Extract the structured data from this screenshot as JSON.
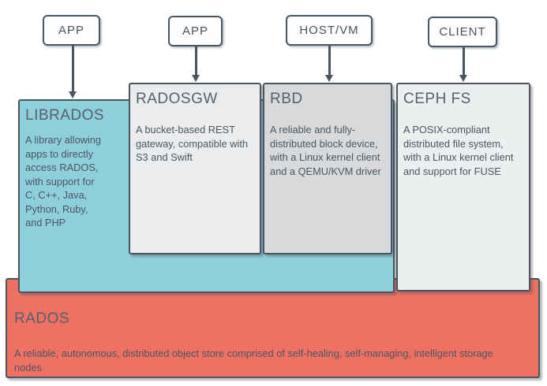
{
  "colors": {
    "background": "#ffffff",
    "border_dark": "#4a5560",
    "title_text": "#56616b",
    "body_text": "#4c5660",
    "librados_fill": "#8dcfdb",
    "rados_fill": "#ee7163",
    "radosgw_fill": "#eaeced",
    "rbd_fill": "#d7d9da",
    "cephfs_fill": "#eceff0",
    "node_fill": "#fdfdfd"
  },
  "top_nodes": [
    {
      "label": "APP"
    },
    {
      "label": "APP"
    },
    {
      "label": "HOST/VM"
    },
    {
      "label": "CLIENT"
    }
  ],
  "boxes": {
    "librados": {
      "title": "LIBRADOS",
      "description": "A library allowing\napps to directly\naccess RADOS,\nwith support for\nC, C++, Java,\nPython, Ruby,\nand PHP"
    },
    "radosgw": {
      "title": "RADOSGW",
      "description": "A bucket-based REST\ngateway, compatible with\nS3 and Swift"
    },
    "rbd": {
      "title": "RBD",
      "description": "A reliable and fully-\ndistributed block device,\nwith a Linux kernel client\nand a QEMU/KVM driver"
    },
    "cephfs": {
      "title": "CEPH FS",
      "description": "A POSIX-compliant\ndistributed file system,\nwith a Linux kernel client\nand support for FUSE"
    },
    "rados": {
      "title": "RADOS",
      "description": "A reliable, autonomous, distributed object store comprised of self-healing, self-managing, intelligent storage\nnodes"
    }
  }
}
